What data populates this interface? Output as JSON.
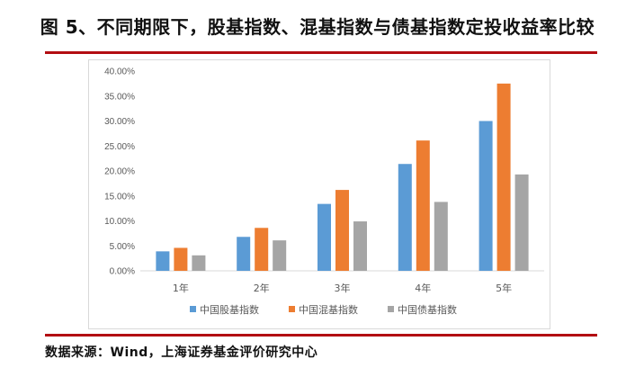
{
  "title": "图 5、不同期限下，股基指数、混基指数与债基指数定投收益率比较",
  "source": "数据来源：Wind，上海证券基金评价研究中心",
  "chart_data": {
    "type": "bar",
    "categories": [
      "1年",
      "2年",
      "3年",
      "4年",
      "5年"
    ],
    "series": [
      {
        "name": "中国股基指数",
        "color": "#5b9bd5",
        "values": [
          3.9,
          6.8,
          13.4,
          21.4,
          30.0
        ]
      },
      {
        "name": "中国混基指数",
        "color": "#ed7d31",
        "values": [
          4.6,
          8.6,
          16.2,
          26.1,
          37.5
        ]
      },
      {
        "name": "中国债基指数",
        "color": "#a5a5a5",
        "values": [
          3.1,
          6.1,
          9.9,
          13.8,
          19.3
        ]
      }
    ],
    "yticks": [
      "0.00%",
      "5.00%",
      "10.00%",
      "15.00%",
      "20.00%",
      "25.00%",
      "30.00%",
      "35.00%",
      "40.00%"
    ],
    "ylim": [
      0,
      40
    ],
    "grid": false,
    "legend": "bottom"
  }
}
